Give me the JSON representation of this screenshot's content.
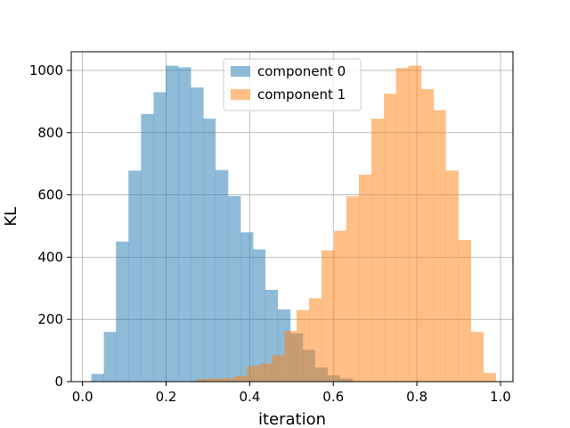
{
  "chart_data": {
    "type": "bar",
    "subtype": "overlapping-histogram",
    "title": "",
    "xlabel": "iteration",
    "ylabel": "KL",
    "xlim": [
      -0.0,
      1.0
    ],
    "ylim": [
      0,
      1060
    ],
    "xticks": [
      0.0,
      0.2,
      0.4,
      0.6,
      0.8,
      1.0
    ],
    "xtick_labels": [
      "0.0",
      "0.2",
      "0.4",
      "0.6",
      "0.8",
      "1.0"
    ],
    "yticks": [
      0,
      200,
      400,
      600,
      800,
      1000
    ],
    "ytick_labels": [
      "0",
      "200",
      "400",
      "600",
      "800",
      "1000"
    ],
    "grid": true,
    "legend_position": "top-center",
    "series": [
      {
        "name": "component 0",
        "color": "#1f77b4",
        "alpha": 0.5,
        "bins": [
          [
            0.021,
            0.051,
            25
          ],
          [
            0.051,
            0.08,
            160
          ],
          [
            0.08,
            0.11,
            450
          ],
          [
            0.11,
            0.14,
            678
          ],
          [
            0.14,
            0.17,
            860
          ],
          [
            0.17,
            0.199,
            930
          ],
          [
            0.199,
            0.229,
            1015
          ],
          [
            0.229,
            0.259,
            1010
          ],
          [
            0.259,
            0.289,
            945
          ],
          [
            0.289,
            0.318,
            845
          ],
          [
            0.318,
            0.348,
            680
          ],
          [
            0.348,
            0.378,
            596
          ],
          [
            0.378,
            0.408,
            480
          ],
          [
            0.408,
            0.437,
            425
          ],
          [
            0.437,
            0.467,
            295
          ],
          [
            0.467,
            0.497,
            232
          ],
          [
            0.497,
            0.527,
            155
          ],
          [
            0.527,
            0.556,
            102
          ],
          [
            0.556,
            0.586,
            45
          ],
          [
            0.586,
            0.616,
            20
          ],
          [
            0.616,
            0.646,
            10
          ]
        ]
      },
      {
        "name": "component 1",
        "color": "#ff7f0e",
        "alpha": 0.5,
        "bins": [
          [
            0.274,
            0.304,
            8
          ],
          [
            0.304,
            0.334,
            10
          ],
          [
            0.334,
            0.364,
            12
          ],
          [
            0.364,
            0.393,
            18
          ],
          [
            0.393,
            0.423,
            50
          ],
          [
            0.423,
            0.453,
            58
          ],
          [
            0.453,
            0.483,
            85
          ],
          [
            0.483,
            0.512,
            163
          ],
          [
            0.512,
            0.542,
            230
          ],
          [
            0.542,
            0.572,
            268
          ],
          [
            0.572,
            0.602,
            422
          ],
          [
            0.602,
            0.631,
            485
          ],
          [
            0.631,
            0.661,
            595
          ],
          [
            0.661,
            0.691,
            665
          ],
          [
            0.691,
            0.721,
            845
          ],
          [
            0.721,
            0.75,
            925
          ],
          [
            0.75,
            0.78,
            1008
          ],
          [
            0.78,
            0.81,
            1015
          ],
          [
            0.81,
            0.84,
            940
          ],
          [
            0.84,
            0.869,
            872
          ],
          [
            0.869,
            0.899,
            678
          ],
          [
            0.899,
            0.929,
            455
          ],
          [
            0.929,
            0.959,
            160
          ],
          [
            0.959,
            0.989,
            28
          ]
        ]
      }
    ]
  }
}
